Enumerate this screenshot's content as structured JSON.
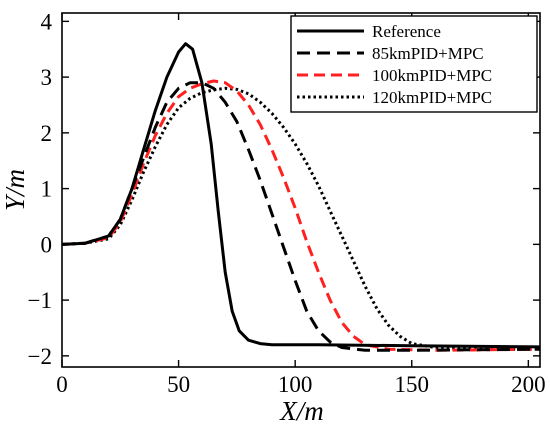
{
  "chart_data": {
    "type": "line",
    "xlabel": "X/m",
    "ylabel": "Y/m",
    "xlim": [
      0,
      205
    ],
    "ylim": [
      -2.2,
      4.15
    ],
    "xticks": [
      0,
      50,
      100,
      150,
      200
    ],
    "yticks": [
      -2,
      -1,
      0,
      1,
      2,
      3,
      4
    ],
    "ytick_labels": [
      "−2",
      "−1",
      "0",
      "1",
      "2",
      "3",
      "4"
    ],
    "grid": false,
    "legend_position": "top-right",
    "series": [
      {
        "name": "Reference",
        "color": "#000000",
        "dash": "solid",
        "points": [
          [
            0,
            0
          ],
          [
            10,
            0.02
          ],
          [
            20,
            0.15
          ],
          [
            25,
            0.45
          ],
          [
            30,
            1.0
          ],
          [
            35,
            1.7
          ],
          [
            40,
            2.4
          ],
          [
            45,
            3.0
          ],
          [
            50,
            3.45
          ],
          [
            53,
            3.6
          ],
          [
            56,
            3.5
          ],
          [
            60,
            2.9
          ],
          [
            64,
            1.8
          ],
          [
            67,
            0.6
          ],
          [
            70,
            -0.5
          ],
          [
            73,
            -1.2
          ],
          [
            76,
            -1.55
          ],
          [
            80,
            -1.72
          ],
          [
            85,
            -1.78
          ],
          [
            90,
            -1.8
          ],
          [
            110,
            -1.8
          ],
          [
            150,
            -1.82
          ],
          [
            205,
            -1.84
          ]
        ]
      },
      {
        "name": "85kmPID+MPC",
        "color": "#000000",
        "dash": "long-dash",
        "points": [
          [
            0,
            0
          ],
          [
            10,
            0.02
          ],
          [
            20,
            0.15
          ],
          [
            25,
            0.45
          ],
          [
            30,
            1.0
          ],
          [
            35,
            1.55
          ],
          [
            40,
            2.1
          ],
          [
            45,
            2.55
          ],
          [
            50,
            2.8
          ],
          [
            55,
            2.9
          ],
          [
            60,
            2.9
          ],
          [
            65,
            2.8
          ],
          [
            70,
            2.55
          ],
          [
            75,
            2.2
          ],
          [
            80,
            1.7
          ],
          [
            85,
            1.15
          ],
          [
            90,
            0.55
          ],
          [
            95,
            -0.05
          ],
          [
            100,
            -0.65
          ],
          [
            105,
            -1.2
          ],
          [
            110,
            -1.55
          ],
          [
            115,
            -1.75
          ],
          [
            120,
            -1.85
          ],
          [
            130,
            -1.9
          ],
          [
            150,
            -1.9
          ],
          [
            205,
            -1.88
          ]
        ]
      },
      {
        "name": "100kmPID+MPC",
        "color": "#ff2020",
        "dash": "dash",
        "points": [
          [
            0,
            0
          ],
          [
            10,
            0.02
          ],
          [
            20,
            0.12
          ],
          [
            25,
            0.4
          ],
          [
            30,
            0.9
          ],
          [
            35,
            1.45
          ],
          [
            40,
            1.95
          ],
          [
            45,
            2.35
          ],
          [
            50,
            2.65
          ],
          [
            55,
            2.8
          ],
          [
            60,
            2.88
          ],
          [
            65,
            2.93
          ],
          [
            70,
            2.9
          ],
          [
            75,
            2.75
          ],
          [
            80,
            2.5
          ],
          [
            85,
            2.15
          ],
          [
            90,
            1.7
          ],
          [
            95,
            1.2
          ],
          [
            100,
            0.65
          ],
          [
            105,
            0.05
          ],
          [
            110,
            -0.5
          ],
          [
            115,
            -1.0
          ],
          [
            120,
            -1.4
          ],
          [
            125,
            -1.65
          ],
          [
            130,
            -1.8
          ],
          [
            140,
            -1.88
          ],
          [
            160,
            -1.9
          ],
          [
            205,
            -1.88
          ]
        ]
      },
      {
        "name": "120kmPID+MPC",
        "color": "#000000",
        "dash": "dot",
        "points": [
          [
            0,
            0
          ],
          [
            10,
            0.02
          ],
          [
            20,
            0.1
          ],
          [
            25,
            0.35
          ],
          [
            30,
            0.8
          ],
          [
            35,
            1.3
          ],
          [
            40,
            1.75
          ],
          [
            45,
            2.15
          ],
          [
            50,
            2.45
          ],
          [
            55,
            2.62
          ],
          [
            60,
            2.72
          ],
          [
            65,
            2.77
          ],
          [
            70,
            2.8
          ],
          [
            75,
            2.78
          ],
          [
            80,
            2.7
          ],
          [
            85,
            2.55
          ],
          [
            90,
            2.35
          ],
          [
            95,
            2.1
          ],
          [
            100,
            1.8
          ],
          [
            105,
            1.45
          ],
          [
            110,
            1.05
          ],
          [
            115,
            0.6
          ],
          [
            120,
            0.15
          ],
          [
            125,
            -0.3
          ],
          [
            130,
            -0.75
          ],
          [
            135,
            -1.15
          ],
          [
            140,
            -1.45
          ],
          [
            145,
            -1.65
          ],
          [
            150,
            -1.78
          ],
          [
            160,
            -1.85
          ],
          [
            180,
            -1.88
          ],
          [
            205,
            -1.88
          ]
        ]
      }
    ]
  }
}
